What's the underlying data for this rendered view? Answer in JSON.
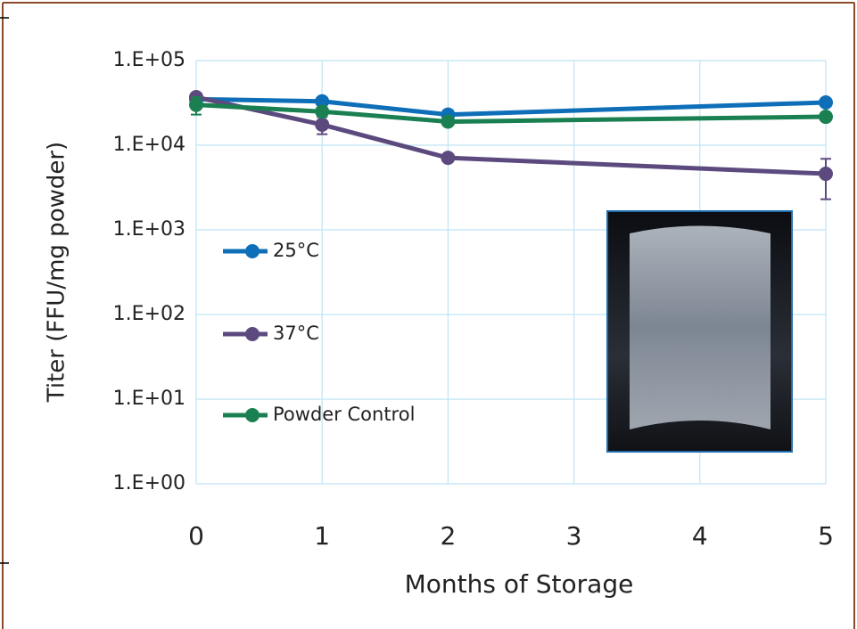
{
  "chart_data": {
    "type": "line",
    "x_label": "Months of Storage",
    "y_label": "Titer (FFU/mg powder)",
    "x": [
      0,
      1,
      2,
      5
    ],
    "series": [
      {
        "name": "25°C",
        "color": "#0e6fb8",
        "values": [
          35000,
          33000,
          23000,
          32000
        ],
        "errors": [
          null,
          null,
          3000,
          null
        ]
      },
      {
        "name": "37°C",
        "color": "#5c4a7f",
        "values": [
          37000,
          17500,
          7100,
          4600
        ],
        "errors": [
          null,
          4000,
          null,
          2300
        ]
      },
      {
        "name": "Powder Control",
        "color": "#1a8052",
        "values": [
          30000,
          25000,
          19000,
          21700
        ],
        "errors": [
          7000,
          null,
          null,
          null
        ]
      }
    ],
    "xlim": [
      0,
      5
    ],
    "xticks": [
      0,
      1,
      2,
      3,
      4,
      5
    ],
    "ylim": [
      1,
      100000
    ],
    "yticks": [
      {
        "value": 1,
        "label": "1.E+00"
      },
      {
        "value": 10,
        "label": "1.E+01"
      },
      {
        "value": 100,
        "label": "1.E+02"
      },
      {
        "value": 1000,
        "label": "1.E+03"
      },
      {
        "value": 10000,
        "label": "1.E+04"
      },
      {
        "value": 100000,
        "label": "1.E+05"
      }
    ],
    "y_scale": "log",
    "grid": true,
    "legend": "left"
  }
}
